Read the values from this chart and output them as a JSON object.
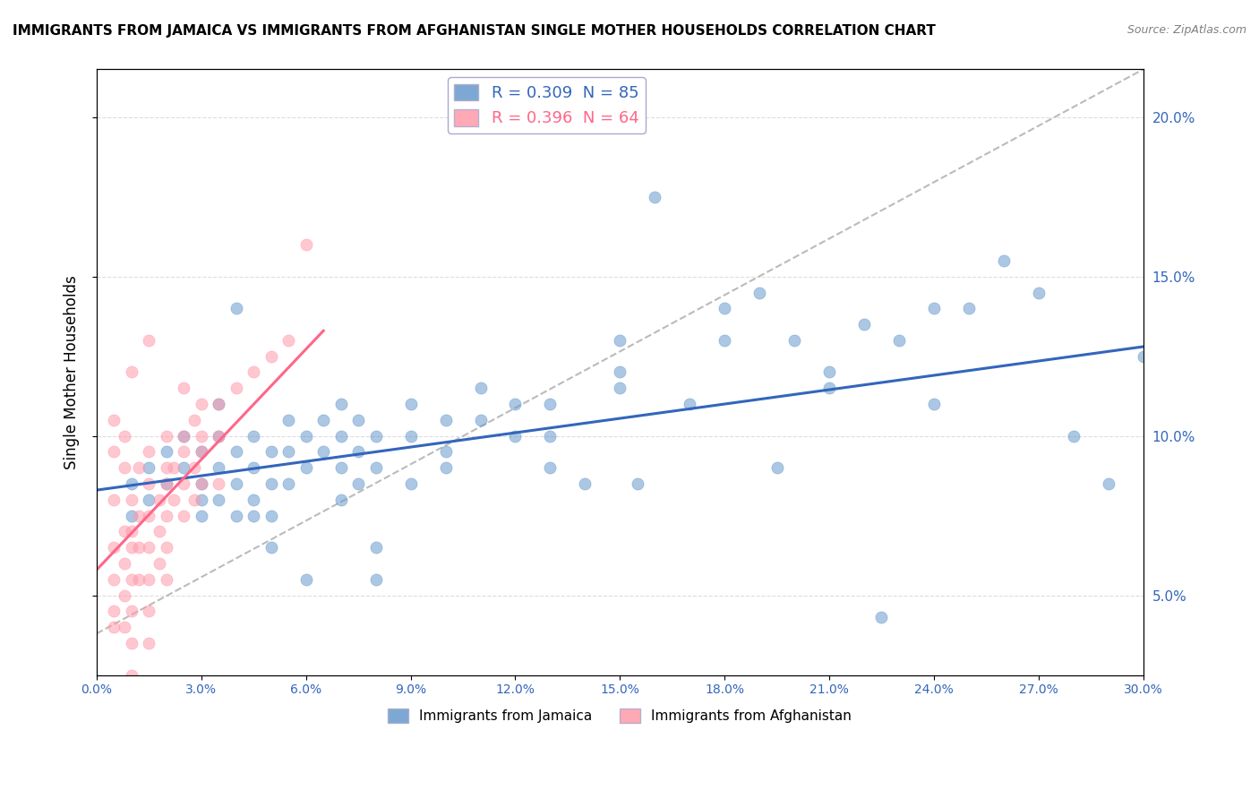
{
  "title": "IMMIGRANTS FROM JAMAICA VS IMMIGRANTS FROM AFGHANISTAN SINGLE MOTHER HOUSEHOLDS CORRELATION CHART",
  "source": "Source: ZipAtlas.com",
  "ylabel": "Single Mother Households",
  "ylabel_right_vals": [
    0.05,
    0.1,
    0.15,
    0.2
  ],
  "xmin": 0.0,
  "xmax": 0.3,
  "ymin": 0.025,
  "ymax": 0.215,
  "legend_jamaica": "R = 0.309  N = 85",
  "legend_afghanistan": "R = 0.396  N = 64",
  "color_jamaica": "#6699CC",
  "color_afghanistan": "#FF99AA",
  "color_jamaica_line": "#3366BB",
  "color_afghanistan_line": "#FF6688",
  "color_diag_line": "#BBBBBB",
  "jamaica_scatter": [
    [
      0.01,
      0.085
    ],
    [
      0.01,
      0.075
    ],
    [
      0.015,
      0.09
    ],
    [
      0.015,
      0.08
    ],
    [
      0.02,
      0.095
    ],
    [
      0.02,
      0.085
    ],
    [
      0.025,
      0.09
    ],
    [
      0.025,
      0.1
    ],
    [
      0.03,
      0.095
    ],
    [
      0.03,
      0.085
    ],
    [
      0.03,
      0.075
    ],
    [
      0.03,
      0.08
    ],
    [
      0.035,
      0.1
    ],
    [
      0.035,
      0.11
    ],
    [
      0.035,
      0.09
    ],
    [
      0.035,
      0.08
    ],
    [
      0.04,
      0.095
    ],
    [
      0.04,
      0.085
    ],
    [
      0.04,
      0.075
    ],
    [
      0.04,
      0.14
    ],
    [
      0.045,
      0.1
    ],
    [
      0.045,
      0.09
    ],
    [
      0.045,
      0.08
    ],
    [
      0.045,
      0.075
    ],
    [
      0.05,
      0.095
    ],
    [
      0.05,
      0.085
    ],
    [
      0.05,
      0.075
    ],
    [
      0.05,
      0.065
    ],
    [
      0.055,
      0.105
    ],
    [
      0.055,
      0.095
    ],
    [
      0.055,
      0.085
    ],
    [
      0.06,
      0.1
    ],
    [
      0.06,
      0.09
    ],
    [
      0.06,
      0.055
    ],
    [
      0.065,
      0.105
    ],
    [
      0.065,
      0.095
    ],
    [
      0.07,
      0.11
    ],
    [
      0.07,
      0.1
    ],
    [
      0.07,
      0.09
    ],
    [
      0.07,
      0.08
    ],
    [
      0.075,
      0.105
    ],
    [
      0.075,
      0.095
    ],
    [
      0.075,
      0.085
    ],
    [
      0.08,
      0.1
    ],
    [
      0.08,
      0.09
    ],
    [
      0.08,
      0.065
    ],
    [
      0.08,
      0.055
    ],
    [
      0.09,
      0.11
    ],
    [
      0.09,
      0.1
    ],
    [
      0.09,
      0.085
    ],
    [
      0.1,
      0.105
    ],
    [
      0.1,
      0.09
    ],
    [
      0.1,
      0.095
    ],
    [
      0.11,
      0.115
    ],
    [
      0.11,
      0.105
    ],
    [
      0.12,
      0.11
    ],
    [
      0.12,
      0.1
    ],
    [
      0.13,
      0.11
    ],
    [
      0.13,
      0.1
    ],
    [
      0.13,
      0.09
    ],
    [
      0.15,
      0.13
    ],
    [
      0.15,
      0.12
    ],
    [
      0.15,
      0.115
    ],
    [
      0.16,
      0.175
    ],
    [
      0.17,
      0.11
    ],
    [
      0.18,
      0.14
    ],
    [
      0.18,
      0.13
    ],
    [
      0.19,
      0.145
    ],
    [
      0.2,
      0.13
    ],
    [
      0.21,
      0.12
    ],
    [
      0.21,
      0.115
    ],
    [
      0.22,
      0.135
    ],
    [
      0.23,
      0.13
    ],
    [
      0.24,
      0.14
    ],
    [
      0.24,
      0.11
    ],
    [
      0.25,
      0.14
    ],
    [
      0.26,
      0.155
    ],
    [
      0.27,
      0.145
    ],
    [
      0.28,
      0.1
    ],
    [
      0.29,
      0.085
    ],
    [
      0.3,
      0.125
    ],
    [
      0.225,
      0.043
    ],
    [
      0.14,
      0.085
    ],
    [
      0.155,
      0.085
    ],
    [
      0.195,
      0.09
    ]
  ],
  "afghanistan_scatter": [
    [
      0.005,
      0.065
    ],
    [
      0.005,
      0.055
    ],
    [
      0.005,
      0.045
    ],
    [
      0.005,
      0.04
    ],
    [
      0.008,
      0.07
    ],
    [
      0.008,
      0.06
    ],
    [
      0.008,
      0.05
    ],
    [
      0.008,
      0.04
    ],
    [
      0.01,
      0.08
    ],
    [
      0.01,
      0.07
    ],
    [
      0.01,
      0.065
    ],
    [
      0.01,
      0.055
    ],
    [
      0.01,
      0.045
    ],
    [
      0.01,
      0.035
    ],
    [
      0.01,
      0.025
    ],
    [
      0.012,
      0.075
    ],
    [
      0.012,
      0.065
    ],
    [
      0.012,
      0.055
    ],
    [
      0.015,
      0.085
    ],
    [
      0.015,
      0.075
    ],
    [
      0.015,
      0.065
    ],
    [
      0.015,
      0.055
    ],
    [
      0.015,
      0.045
    ],
    [
      0.015,
      0.035
    ],
    [
      0.018,
      0.08
    ],
    [
      0.018,
      0.07
    ],
    [
      0.018,
      0.06
    ],
    [
      0.02,
      0.085
    ],
    [
      0.02,
      0.075
    ],
    [
      0.02,
      0.065
    ],
    [
      0.02,
      0.055
    ],
    [
      0.022,
      0.09
    ],
    [
      0.022,
      0.08
    ],
    [
      0.025,
      0.095
    ],
    [
      0.025,
      0.085
    ],
    [
      0.025,
      0.075
    ],
    [
      0.028,
      0.09
    ],
    [
      0.028,
      0.08
    ],
    [
      0.03,
      0.1
    ],
    [
      0.03,
      0.085
    ],
    [
      0.035,
      0.11
    ],
    [
      0.035,
      0.1
    ],
    [
      0.04,
      0.115
    ],
    [
      0.045,
      0.12
    ],
    [
      0.05,
      0.125
    ],
    [
      0.055,
      0.13
    ],
    [
      0.06,
      0.16
    ],
    [
      0.01,
      0.12
    ],
    [
      0.015,
      0.13
    ],
    [
      0.02,
      0.1
    ],
    [
      0.025,
      0.115
    ],
    [
      0.03,
      0.095
    ],
    [
      0.008,
      0.09
    ],
    [
      0.005,
      0.08
    ],
    [
      0.005,
      0.095
    ],
    [
      0.005,
      0.105
    ],
    [
      0.008,
      0.1
    ],
    [
      0.012,
      0.09
    ],
    [
      0.015,
      0.095
    ],
    [
      0.02,
      0.09
    ],
    [
      0.025,
      0.1
    ],
    [
      0.028,
      0.105
    ],
    [
      0.03,
      0.11
    ],
    [
      0.035,
      0.085
    ]
  ]
}
